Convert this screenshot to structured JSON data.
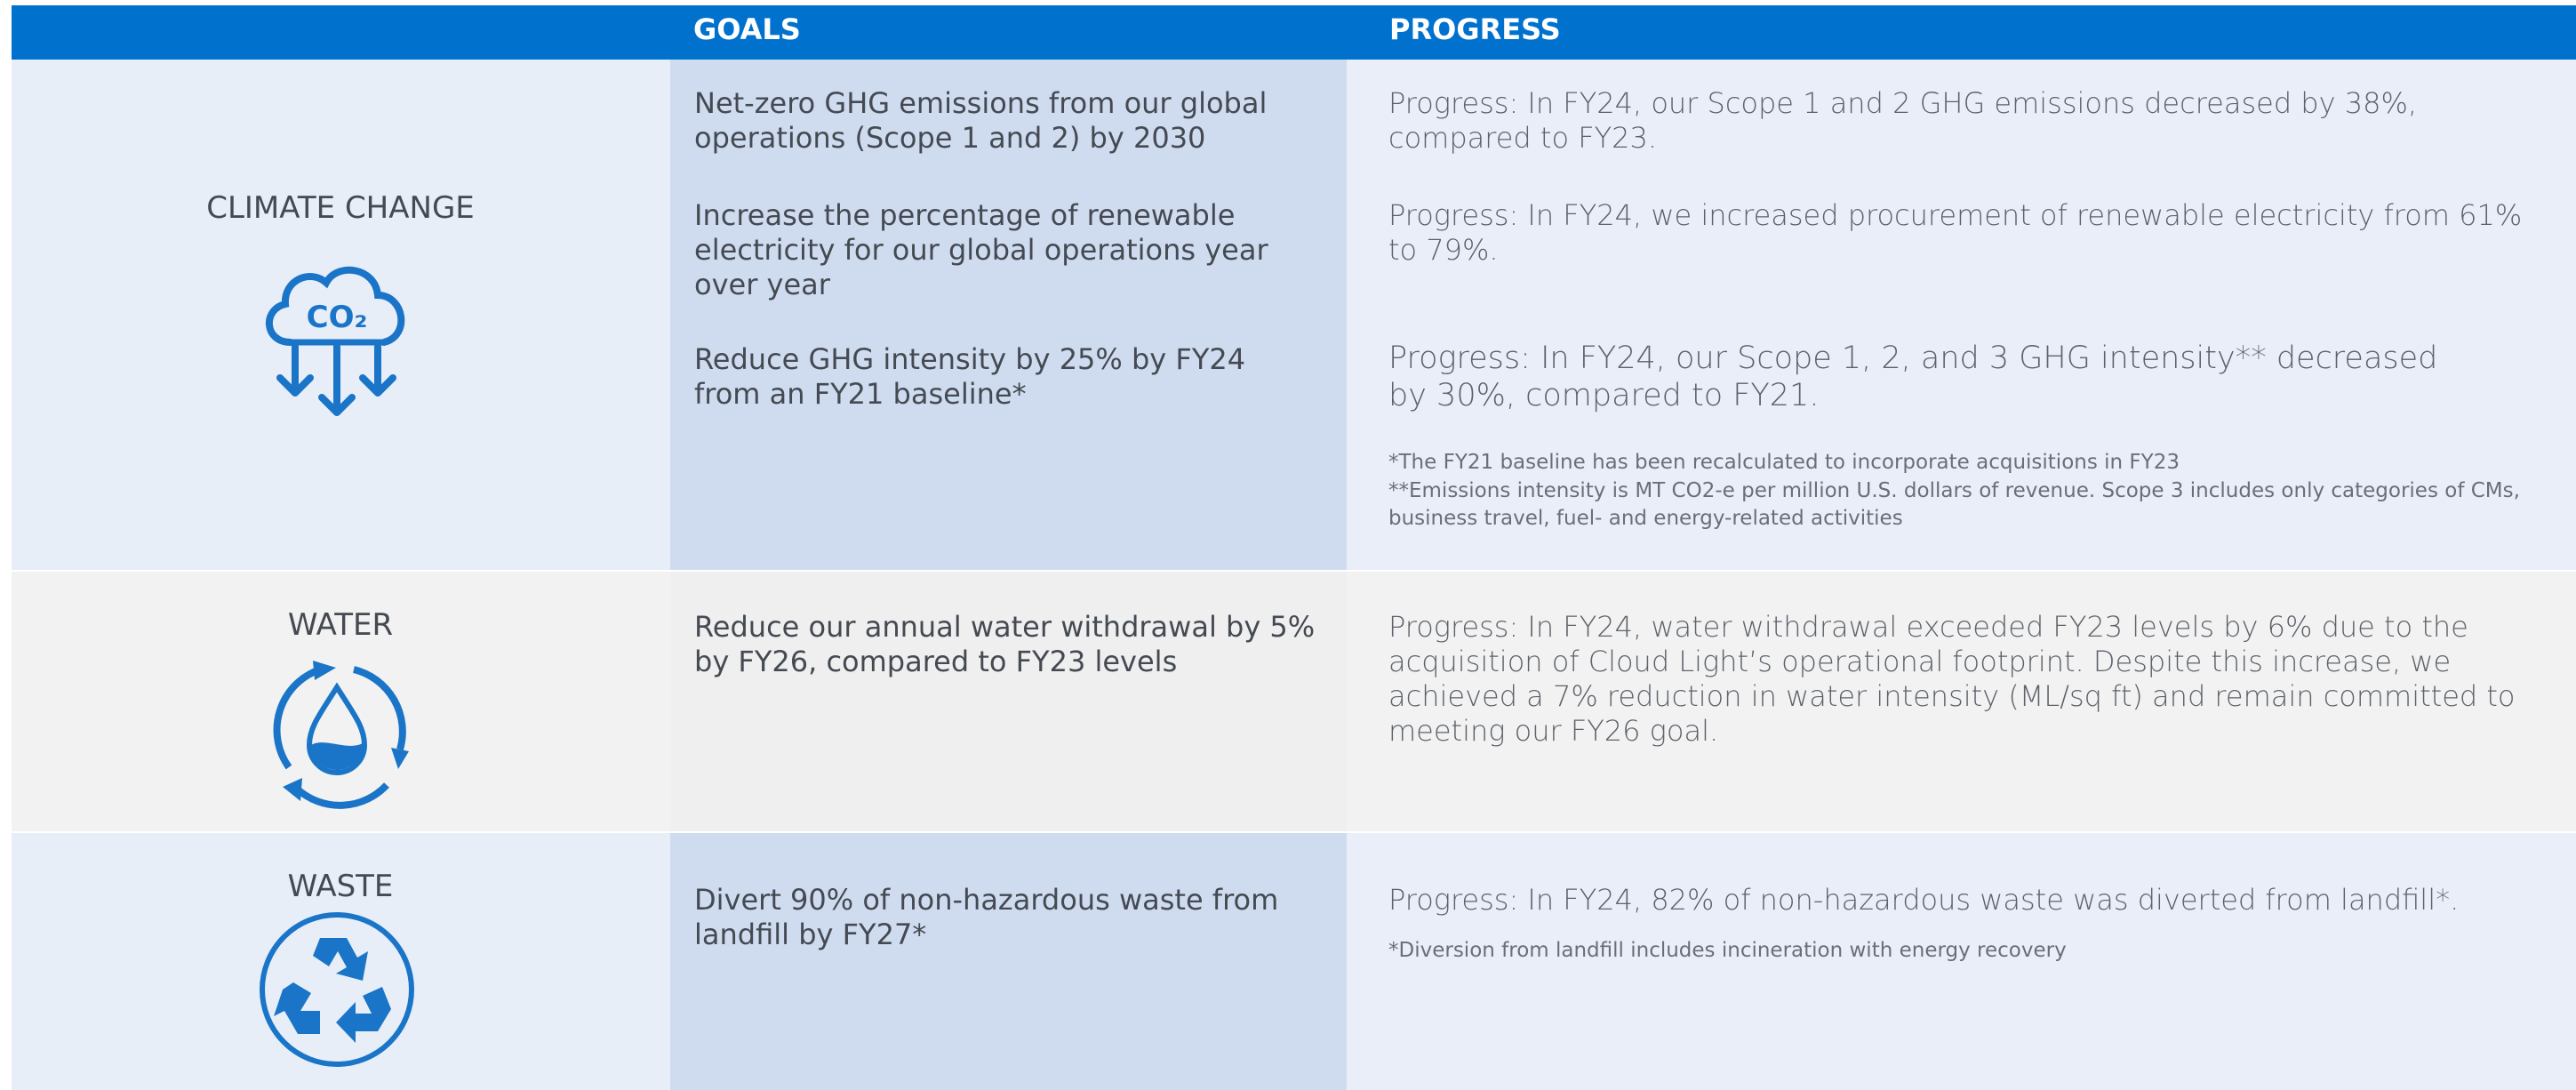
{
  "header": {
    "goals": "GOALS",
    "progress": "PROGRESS"
  },
  "rows": [
    {
      "category": "CLIMATE CHANGE",
      "icon_text": "CO₂",
      "goals": [
        "Net-zero GHG emissions from our global operations (Scope 1 and 2) by 2030",
        "Increase the percentage of renewable electricity for our global operations year over year",
        "Reduce GHG intensity by 25% by FY24 from an FY21 baseline*"
      ],
      "progress": [
        "Progress: In FY24, our Scope 1 and 2 GHG emissions decreased by 38%, compared to FY23.",
        "Progress: In FY24, we increased procurement of renewable electricity from 61% to 79%.",
        "Progress: In FY24, our Scope 1, 2, and 3 GHG intensity** decreased by 30%, compared to FY21."
      ],
      "notes": [
        "*The FY21 baseline has been recalculated to incorporate acquisitions in FY23",
        "**Emissions intensity is MT CO2-e per million U.S. dollars of revenue. Scope 3 includes only categories of CMs, business travel, fuel- and energy-related activities"
      ]
    },
    {
      "category": "WATER",
      "goals": [
        "Reduce our annual water withdrawal by 5% by FY26, compared to FY23 levels"
      ],
      "progress": [
        "Progress: In FY24, water withdrawal exceeded FY23 levels by 6% due to the acquisition of Cloud Light’s operational footprint. Despite this increase, we achieved a 7% reduction in water intensity (ML/sq ft) and remain committed to meeting our FY26 goal."
      ]
    },
    {
      "category": "WASTE",
      "goals": [
        "Divert 90% of non-hazardous waste from landfill by FY27*"
      ],
      "progress": [
        "Progress: In FY24, 82% of non-hazardous waste was diverted from landfill*."
      ],
      "notes": [
        "*Diversion from landfill includes incineration with energy recovery"
      ]
    }
  ]
}
